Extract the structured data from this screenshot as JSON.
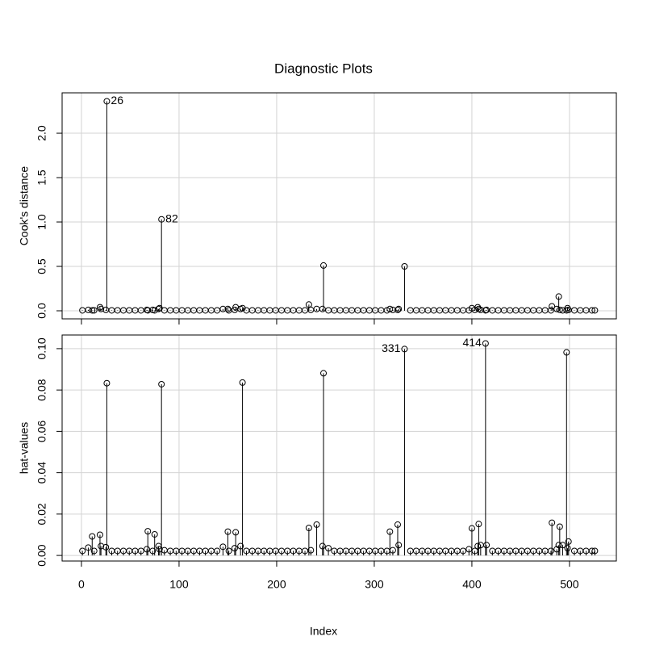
{
  "chart_data": [
    {
      "type": "scatter",
      "title": "Diagnostic Plots",
      "ylabel": "Cook's distance",
      "style": "spikes",
      "x": [
        1,
        7,
        11,
        13,
        19,
        20,
        25,
        26,
        31,
        37,
        43,
        49,
        55,
        61,
        67,
        68,
        73,
        75,
        79,
        80,
        82,
        85,
        91,
        97,
        103,
        109,
        115,
        121,
        127,
        133,
        139,
        145,
        150,
        151,
        157,
        158,
        163,
        165,
        169,
        175,
        181,
        187,
        193,
        199,
        205,
        211,
        217,
        223,
        229,
        233,
        235,
        241,
        247,
        248,
        253,
        259,
        265,
        271,
        277,
        283,
        289,
        295,
        301,
        307,
        313,
        316,
        319,
        324,
        325,
        331,
        337,
        343,
        349,
        355,
        361,
        367,
        373,
        379,
        385,
        391,
        397,
        400,
        403,
        406,
        407,
        409,
        414,
        415,
        421,
        427,
        433,
        439,
        445,
        451,
        457,
        463,
        469,
        475,
        481,
        482,
        487,
        489,
        490,
        493,
        497,
        498,
        499,
        505,
        511,
        517,
        523,
        526
      ],
      "values": [
        0.005,
        0.01,
        0.005,
        0.005,
        0.04,
        0.02,
        0.01,
        2.36,
        0.005,
        0.005,
        0.005,
        0.005,
        0.005,
        0.005,
        0.01,
        0.005,
        0.01,
        0.005,
        0.02,
        0.03,
        1.03,
        0.005,
        0.005,
        0.005,
        0.005,
        0.005,
        0.005,
        0.005,
        0.005,
        0.005,
        0.005,
        0.02,
        0.02,
        0.005,
        0.01,
        0.04,
        0.02,
        0.03,
        0.005,
        0.005,
        0.005,
        0.005,
        0.005,
        0.005,
        0.005,
        0.005,
        0.005,
        0.005,
        0.005,
        0.07,
        0.01,
        0.02,
        0.02,
        0.51,
        0.005,
        0.005,
        0.005,
        0.005,
        0.005,
        0.005,
        0.005,
        0.005,
        0.005,
        0.005,
        0.005,
        0.02,
        0.01,
        0.01,
        0.02,
        0.5,
        0.005,
        0.005,
        0.005,
        0.005,
        0.005,
        0.005,
        0.005,
        0.005,
        0.005,
        0.005,
        0.005,
        0.03,
        0.01,
        0.04,
        0.02,
        0.01,
        0.005,
        0.01,
        0.005,
        0.005,
        0.005,
        0.005,
        0.005,
        0.005,
        0.005,
        0.005,
        0.005,
        0.005,
        0.005,
        0.05,
        0.02,
        0.16,
        0.01,
        0.005,
        0.005,
        0.03,
        0.01,
        0.005,
        0.005,
        0.005,
        0.005,
        0.005
      ],
      "xlim": [
        -19.8,
        548
      ],
      "xticks": [
        0,
        100,
        200,
        300,
        400,
        500
      ],
      "ylim": [
        -0.091,
        2.455
      ],
      "yticks": [
        {
          "value": 0,
          "label": "0.0"
        },
        {
          "value": 0.5,
          "label": "0.5"
        },
        {
          "value": 1,
          "label": "1.0"
        },
        {
          "value": 1.5,
          "label": "1.5"
        },
        {
          "value": 2,
          "label": "2.0"
        }
      ],
      "grid": true,
      "color": "#000000"
    },
    {
      "type": "scatter",
      "xlabel": "Index",
      "ylabel": "hat-values",
      "style": "spikes",
      "x": [
        1,
        7,
        11,
        13,
        19,
        20,
        25,
        26,
        31,
        37,
        43,
        49,
        55,
        61,
        67,
        68,
        73,
        75,
        79,
        80,
        82,
        85,
        91,
        97,
        103,
        109,
        115,
        121,
        127,
        133,
        139,
        145,
        150,
        151,
        157,
        158,
        163,
        165,
        169,
        175,
        181,
        187,
        193,
        199,
        205,
        211,
        217,
        223,
        229,
        233,
        235,
        241,
        247,
        248,
        253,
        259,
        265,
        271,
        277,
        283,
        289,
        295,
        301,
        307,
        313,
        316,
        319,
        324,
        325,
        331,
        337,
        343,
        349,
        355,
        361,
        367,
        373,
        379,
        385,
        391,
        397,
        400,
        403,
        406,
        407,
        409,
        414,
        415,
        421,
        427,
        433,
        439,
        445,
        451,
        457,
        463,
        469,
        475,
        481,
        482,
        487,
        489,
        490,
        493,
        497,
        498,
        499,
        505,
        511,
        517,
        523,
        526
      ],
      "values": [
        0.0022,
        0.0038,
        0.0092,
        0.0022,
        0.01,
        0.0045,
        0.004,
        0.0833,
        0.0022,
        0.0022,
        0.0022,
        0.0022,
        0.0022,
        0.0022,
        0.003,
        0.0117,
        0.0022,
        0.0102,
        0.0045,
        0.003,
        0.0828,
        0.0025,
        0.0022,
        0.0022,
        0.0022,
        0.0022,
        0.0022,
        0.0022,
        0.0022,
        0.0022,
        0.0022,
        0.0042,
        0.0115,
        0.0022,
        0.0035,
        0.0112,
        0.0045,
        0.0836,
        0.0022,
        0.0022,
        0.0022,
        0.0022,
        0.0022,
        0.0022,
        0.0022,
        0.0022,
        0.0022,
        0.0022,
        0.0022,
        0.0133,
        0.0025,
        0.0149,
        0.0045,
        0.0881,
        0.0035,
        0.0022,
        0.0022,
        0.0022,
        0.0022,
        0.0022,
        0.0022,
        0.0022,
        0.0022,
        0.0022,
        0.0022,
        0.0115,
        0.0025,
        0.0149,
        0.005,
        0.0998,
        0.0022,
        0.0022,
        0.0022,
        0.0022,
        0.0022,
        0.0022,
        0.0022,
        0.0022,
        0.0022,
        0.0022,
        0.003,
        0.0131,
        0.0022,
        0.0045,
        0.0152,
        0.005,
        0.1025,
        0.005,
        0.0022,
        0.0022,
        0.0022,
        0.0022,
        0.0022,
        0.0022,
        0.0022,
        0.0022,
        0.0022,
        0.0022,
        0.0022,
        0.0158,
        0.003,
        0.005,
        0.0139,
        0.005,
        0.0982,
        0.0035,
        0.0067,
        0.0022,
        0.0022,
        0.0022,
        0.0022,
        0.0022
      ],
      "xlim": [
        -19.8,
        548
      ],
      "xticks": [
        0,
        100,
        200,
        300,
        400,
        500
      ],
      "ylim": [
        -0.0027,
        0.1066
      ],
      "yticks": [
        {
          "value": 0,
          "label": "0.00"
        },
        {
          "value": 0.02,
          "label": "0.02"
        },
        {
          "value": 0.04,
          "label": "0.04"
        },
        {
          "value": 0.06,
          "label": "0.06"
        },
        {
          "value": 0.08,
          "label": "0.08"
        },
        {
          "value": 0.1,
          "label": "0.10"
        }
      ],
      "grid": true,
      "color": "#000000"
    }
  ]
}
